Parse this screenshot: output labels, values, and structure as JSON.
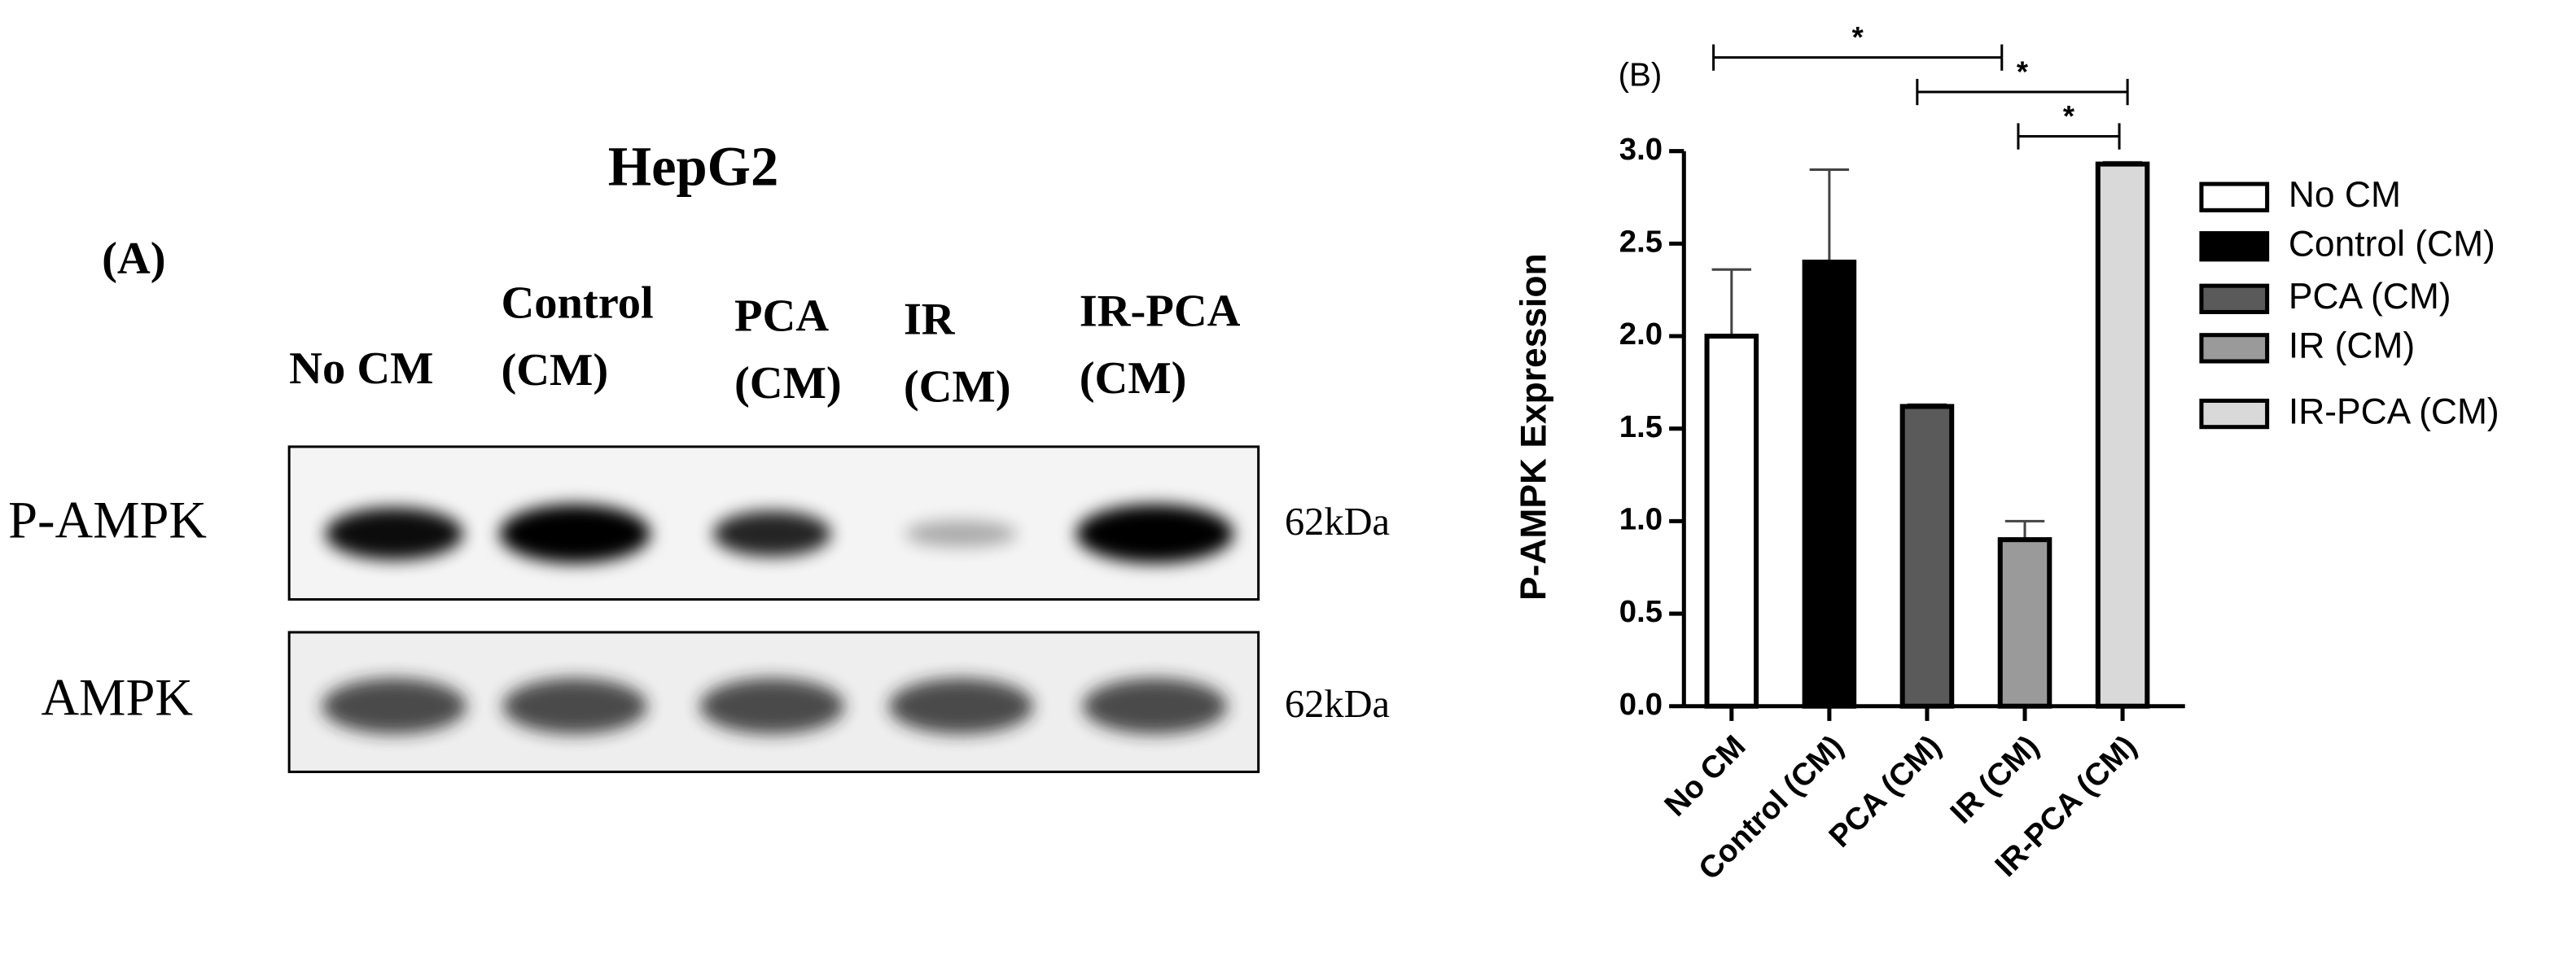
{
  "blot": {
    "panel_label": "(A)",
    "title": "HepG2",
    "lanes": [
      [
        "No CM"
      ],
      [
        "Control",
        "(CM)"
      ],
      [
        "PCA",
        "(CM)"
      ],
      [
        "IR",
        "(CM)"
      ],
      [
        "IR-PCA",
        "(CM)"
      ]
    ],
    "rows": [
      {
        "name": "P-AMPK",
        "size": "62kDa"
      },
      {
        "name": "AMPK",
        "size": "62kDa"
      }
    ]
  },
  "chart_data": {
    "type": "bar",
    "panel_label": "(B)",
    "ylabel": "P-AMPK  Expression",
    "categories": [
      "No CM",
      "Control (CM)",
      "PCA (CM)",
      "IR (CM)",
      "IR-PCA (CM)"
    ],
    "values": [
      2.0,
      2.4,
      1.62,
      0.9,
      2.93
    ],
    "errors": [
      0.36,
      0.5,
      0.01,
      0.1,
      0.01
    ],
    "colors": [
      "#ffffff",
      "#000000",
      "#5a5a5a",
      "#9a9a9a",
      "#d9d9d9"
    ],
    "ylim": [
      0,
      3
    ],
    "yticks": [
      {
        "value": 0,
        "label": "0.0"
      },
      {
        "value": 0.5,
        "label": "0.5"
      },
      {
        "value": 1,
        "label": "1.0"
      },
      {
        "value": 1.5,
        "label": "1.5"
      },
      {
        "value": 2,
        "label": "2.0"
      },
      {
        "value": 2.5,
        "label": "2.5"
      },
      {
        "value": 3,
        "label": "3.0"
      }
    ],
    "significance": [
      {
        "from": 0,
        "to": 3,
        "label": "*"
      },
      {
        "from": 2,
        "to": 4,
        "label": "*"
      },
      {
        "from": 3,
        "to": 4,
        "label": "*"
      }
    ]
  }
}
